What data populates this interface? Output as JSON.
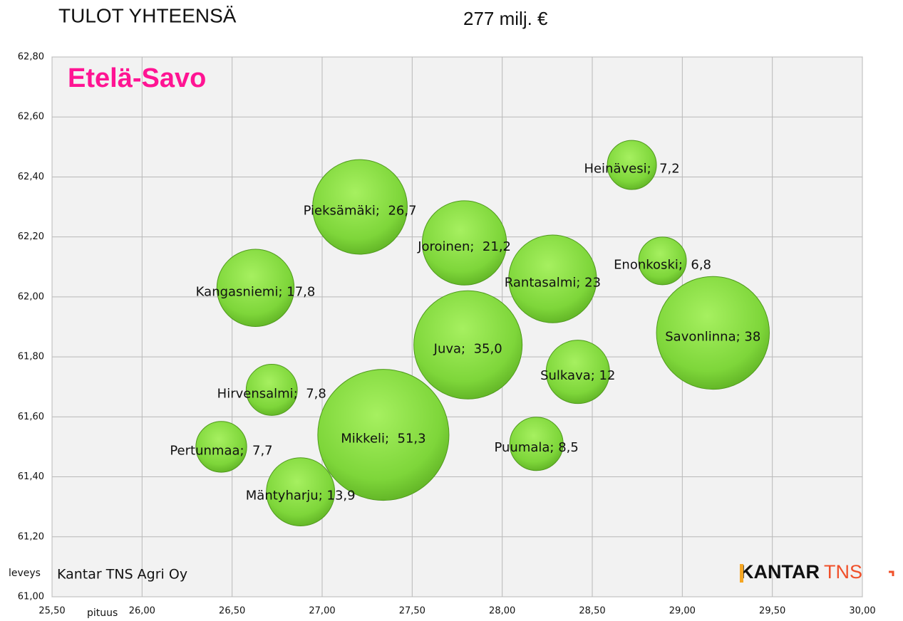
{
  "chart_data": {
    "type": "bubble",
    "title": "TULOT YHTEENSÄ",
    "subtitle": "277 milj. €",
    "annotation": "Etelä-Savo",
    "ylabel": "leveys",
    "xlabel": "pituus",
    "source": "Kantar TNS Agri Oy",
    "logo": [
      "KANTAR",
      "TNS"
    ],
    "color": "#7ed63a",
    "grid": true,
    "xlim": [
      25.5,
      30.0
    ],
    "ylim": [
      61.0,
      62.8
    ],
    "xticks": [
      {
        "value": 25.5,
        "label": "25,50"
      },
      {
        "value": 26.0,
        "label": "26,00"
      },
      {
        "value": 26.5,
        "label": "26,50"
      },
      {
        "value": 27.0,
        "label": "27,00"
      },
      {
        "value": 27.5,
        "label": "27,50"
      },
      {
        "value": 28.0,
        "label": "28,00"
      },
      {
        "value": 28.5,
        "label": "28,50"
      },
      {
        "value": 29.0,
        "label": "29,00"
      },
      {
        "value": 29.5,
        "label": "29,50"
      },
      {
        "value": 30.0,
        "label": "30,00"
      }
    ],
    "yticks": [
      {
        "value": 61.0,
        "label": "61,00"
      },
      {
        "value": 61.2,
        "label": "61,20"
      },
      {
        "value": 61.4,
        "label": "61,40"
      },
      {
        "value": 61.6,
        "label": "61,60"
      },
      {
        "value": 61.8,
        "label": "61,80"
      },
      {
        "value": 62.0,
        "label": "62,00"
      },
      {
        "value": 62.2,
        "label": "62,20"
      },
      {
        "value": 62.4,
        "label": "62,40"
      },
      {
        "value": 62.6,
        "label": "62,60"
      },
      {
        "value": 62.8,
        "label": "62,80"
      }
    ],
    "x": [
      28.72,
      27.21,
      27.79,
      28.28,
      28.89,
      26.63,
      29.17,
      27.81,
      28.42,
      26.72,
      27.34,
      28.19,
      26.44,
      26.88
    ],
    "y": [
      62.44,
      62.3,
      62.18,
      62.06,
      62.12,
      62.03,
      61.88,
      61.84,
      61.75,
      61.69,
      61.54,
      61.51,
      61.5,
      61.35
    ],
    "sizes": [
      7.2,
      26.7,
      21.2,
      23,
      6.8,
      17.8,
      38,
      35.0,
      12,
      7.8,
      51.3,
      8.5,
      7.7,
      13.9
    ],
    "value_labels": [
      "Heinävesi;  7,2",
      "Pieksämäki;  26,7",
      "Joroinen;  21,2",
      "Rantasalmi; 23",
      "Enonkoski;  6,8",
      "Kangasniemi; 17,8",
      "Savonlinna; 38",
      "Juva;  35,0",
      "Sulkava; 12",
      "Hirvensalmi;  7,8",
      "Mikkeli;  51,3",
      "Puumala; 8,5",
      "Pertunmaa;  7,7",
      "Mäntyharju; 13,9"
    ]
  }
}
